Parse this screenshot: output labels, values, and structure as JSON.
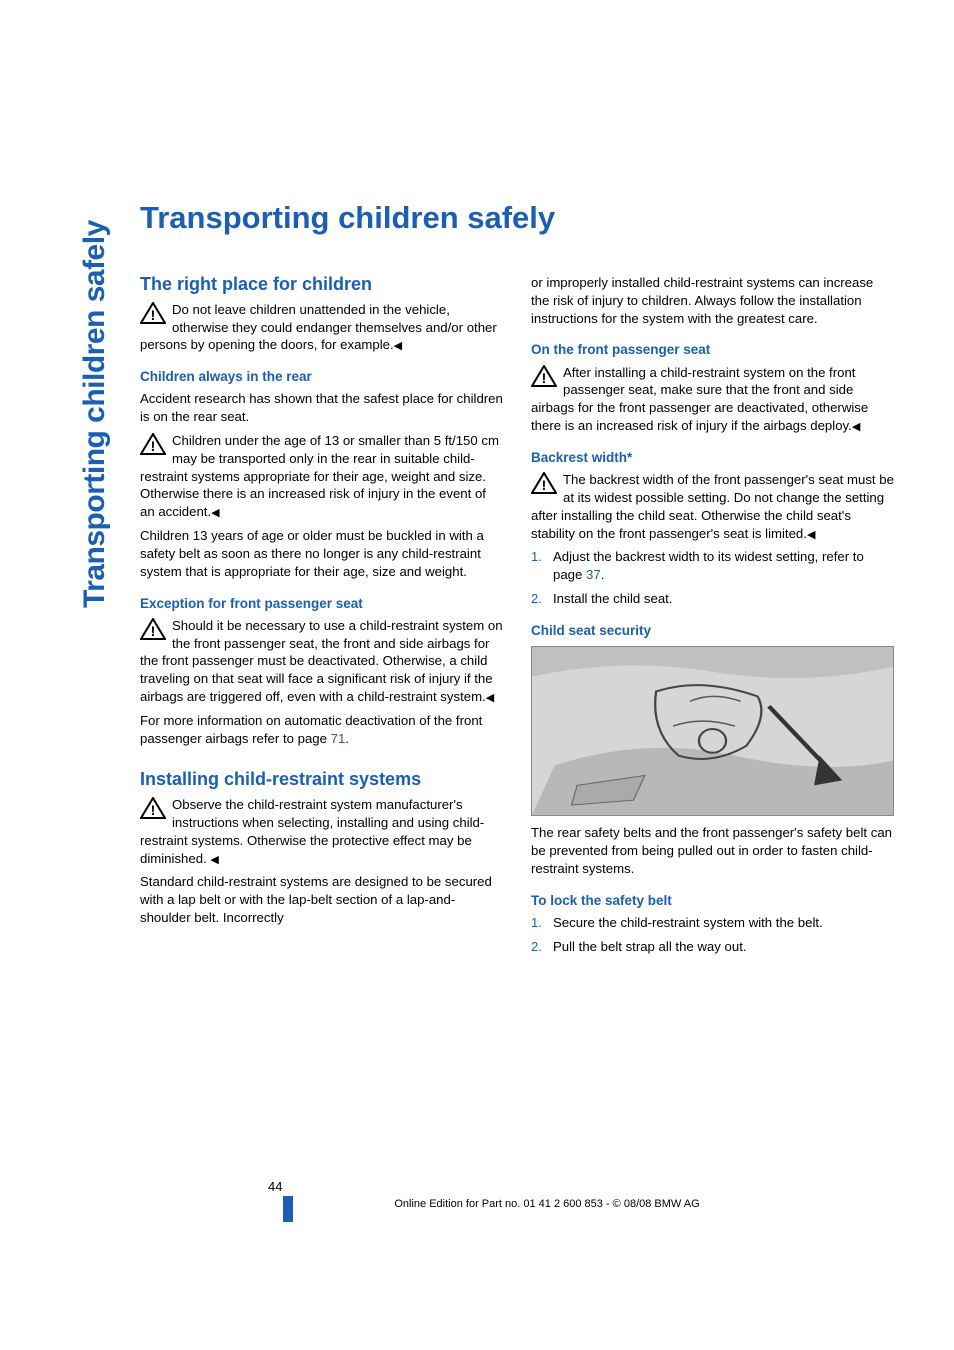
{
  "colors": {
    "accent": "#1a5fb4",
    "text": "#000000",
    "bg": "#ffffff",
    "figure_bg": "#d0d0d0",
    "figure_border": "#888888"
  },
  "typography": {
    "title_fontsize": 31,
    "side_tab_fontsize": 30,
    "h2_fontsize": 18,
    "h3_fontsize": 13.5,
    "body_fontsize": 13.2,
    "footer_fontsize": 11
  },
  "side_tab": "Transporting children safely",
  "title": "Transporting children safely",
  "end_marker": "◀",
  "left": {
    "h2_right_place": "The right place for children",
    "warn_right_place": "Do not leave children unattended in the vehicle, otherwise they could endanger themselves and/or other persons by opening the doors, for example.",
    "h3_children_rear": "Children always in the rear",
    "p_children_rear": "Accident research has shown that the safest place for children is on the rear seat.",
    "warn_children_age": "Children under the age of 13 or smaller than 5 ft/150 cm may be transported only in the rear in suitable child-restraint systems appropriate for their age, weight and size. Otherwise there is an increased risk of injury in the event of an accident.",
    "p_children_13": "Children 13 years of age or older must be buckled in with a safety belt as soon as there no longer is any child-restraint system that is appropriate for their age, size and weight.",
    "h3_exception": "Exception for front passenger seat",
    "warn_exception": "Should it be necessary to use a child-restraint system on the front passenger seat, the front and side airbags for the front passenger must be deactivated. Otherwise, a child traveling on that seat will face a significant risk of injury if the airbags are triggered off, even with a child-restraint system.",
    "p_exception_more_a": "For more information on automatic deactivation of the front passenger airbags refer to page ",
    "p_exception_more_ref": "71",
    "p_exception_more_b": ".",
    "h2_installing": "Installing child-restraint systems",
    "warn_installing": "Observe the child-restraint system manufacturer's instructions when selecting, installing and using child-restraint systems. Otherwise the protective effect may be diminished. ",
    "p_installing_std": "Standard child-restraint systems are designed to be secured with a lap belt or with the lap-belt section of a lap-and-shoulder belt. Incorrectly"
  },
  "right": {
    "p_cont": "or improperly installed child-restraint systems can increase the risk of injury to children. Always follow the installation instructions for the system with the greatest care.",
    "h3_front_seat": "On the front passenger seat",
    "warn_front_seat": "After installing a child-restraint system on the front passenger seat, make sure that the front and side airbags for the front passenger are deactivated, otherwise there is an increased risk of injury if the airbags deploy.",
    "h3_backrest": "Backrest width*",
    "warn_backrest": "The backrest width of the front passenger's seat must be at its widest possible setting. Do not change the setting after installing the child seat. Otherwise the child seat's stability on the front passenger's seat is limited.",
    "step1_a": "Adjust the backrest width to its widest setting, refer to page ",
    "step1_ref": "37",
    "step1_b": ".",
    "step2": "Install the child seat.",
    "h3_child_seat_sec": "Child seat security",
    "figure_alt": "Illustration of rear seat safety belt locking for child seat",
    "p_child_seat_sec": "The rear safety belts and the front passenger's safety belt can be prevented from being pulled out in order to fasten child-restraint systems.",
    "h3_lock_belt": "To lock the safety belt",
    "lock_step1": "Secure the child-restraint system with the belt.",
    "lock_step2": "Pull the belt strap all the way out."
  },
  "footer": {
    "page_number": "44",
    "line": "Online Edition for Part no. 01 41 2 600 853 - © 08/08 BMW AG"
  }
}
